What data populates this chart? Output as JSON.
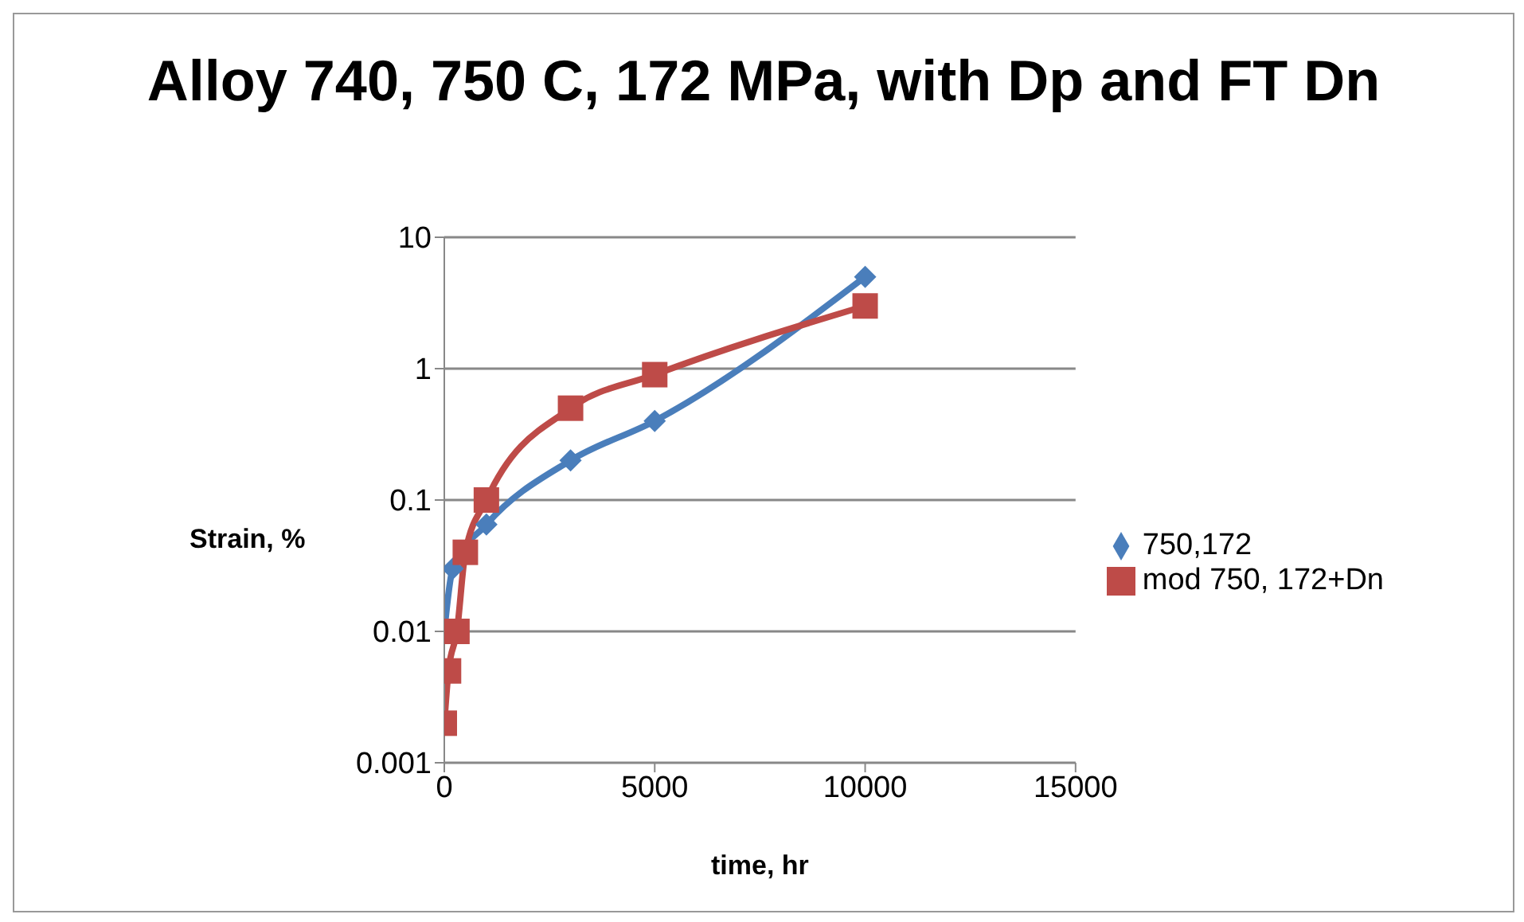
{
  "chart_data": {
    "type": "line",
    "title": "Alloy 740, 750 C, 172 MPa, with Dp and FT Dn",
    "xlabel": "time, hr",
    "ylabel": "Strain, %",
    "log": "y",
    "xlim": [
      0,
      15000
    ],
    "xticks": [
      0,
      5000,
      10000,
      15000
    ],
    "ylim": [
      0.001,
      10
    ],
    "yticks": [
      0.001,
      0.01,
      0.1,
      1,
      10
    ],
    "grid": "y",
    "legend": "right",
    "series": [
      {
        "name": "750,172",
        "color": "#4a7ebb",
        "marker": "diamond",
        "x": [
          0,
          200,
          1000,
          3000,
          5000,
          10000
        ],
        "values": [
          0.01,
          0.03,
          0.065,
          0.2,
          0.4,
          5
        ]
      },
      {
        "name": "mod 750, 172+Dn",
        "color": "#be4b48",
        "marker": "square",
        "x": [
          0,
          100,
          300,
          500,
          1000,
          3000,
          5000,
          10000
        ],
        "values": [
          0.002,
          0.005,
          0.01,
          0.04,
          0.1,
          0.5,
          0.9,
          3
        ]
      }
    ]
  }
}
